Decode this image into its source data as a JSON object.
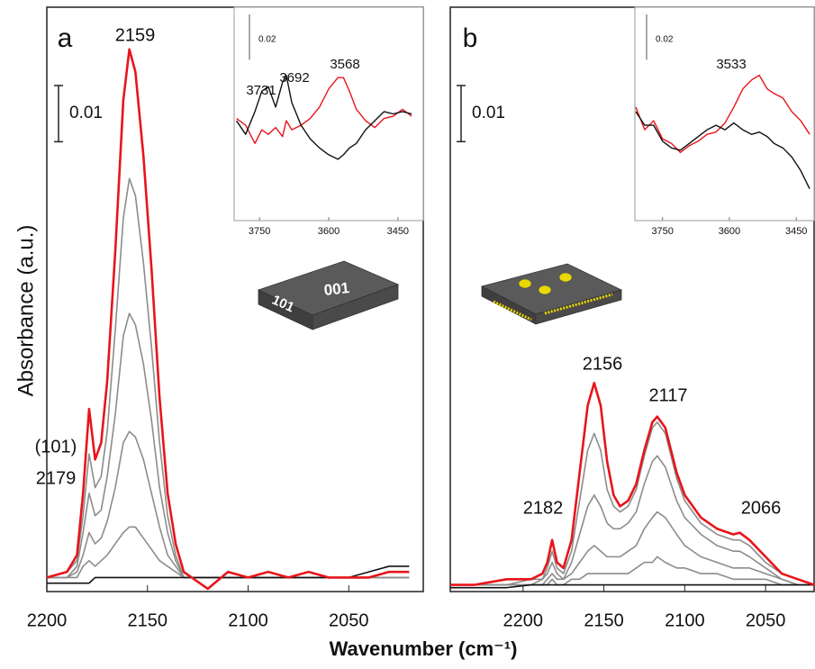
{
  "ylabel": "Absorbance (a.u.)",
  "xlabel": "Wavenumber (cm⁻¹)",
  "chart_data": [
    {
      "type": "line",
      "panel_label": "a",
      "xlim": [
        2200,
        2013
      ],
      "ylim": [
        -0.0025,
        0.1015
      ],
      "xticks": [
        2200,
        2150,
        2100,
        2050
      ],
      "scale_bar": 0.01,
      "peaks": [
        2179,
        2159
      ],
      "peak_note": "(101)",
      "illustration_labels": [
        "001",
        "101"
      ],
      "x": [
        2200,
        2190,
        2185,
        2182,
        2179,
        2176,
        2173,
        2170,
        2166,
        2162,
        2159,
        2156,
        2152,
        2148,
        2144,
        2140,
        2136,
        2132,
        2128,
        2120,
        2110,
        2100,
        2090,
        2080,
        2070,
        2060,
        2050,
        2040,
        2030,
        2020
      ],
      "series": [
        {
          "color": "#8c8c8c",
          "values": [
            0,
            0,
            0,
            0.002,
            0.003,
            0.002,
            0.003,
            0.004,
            0.006,
            0.008,
            0.009,
            0.009,
            0.007,
            0.005,
            0.003,
            0.002,
            0.001,
            0,
            0,
            0,
            0,
            0,
            0,
            0,
            0,
            0,
            0,
            0,
            0,
            0
          ]
        },
        {
          "color": "#8c8c8c",
          "values": [
            0,
            0,
            0.001,
            0.004,
            0.008,
            0.006,
            0.007,
            0.01,
            0.016,
            0.024,
            0.026,
            0.025,
            0.021,
            0.015,
            0.009,
            0.004,
            0.002,
            0,
            0,
            0,
            0,
            0,
            0,
            0,
            0,
            0,
            0,
            0,
            0,
            0
          ]
        },
        {
          "color": "#8c8c8c",
          "values": [
            0,
            0,
            0.002,
            0.008,
            0.015,
            0.011,
            0.012,
            0.018,
            0.029,
            0.043,
            0.047,
            0.045,
            0.038,
            0.028,
            0.016,
            0.008,
            0.003,
            0,
            0,
            0,
            0,
            0,
            0,
            0,
            0,
            0,
            0,
            0,
            0,
            0
          ]
        },
        {
          "color": "#8c8c8c",
          "values": [
            0,
            0.001,
            0.003,
            0.011,
            0.022,
            0.016,
            0.018,
            0.026,
            0.044,
            0.064,
            0.071,
            0.068,
            0.056,
            0.041,
            0.024,
            0.011,
            0.004,
            0,
            0,
            0,
            0,
            0,
            0,
            0,
            0,
            0,
            0,
            0,
            0,
            0
          ]
        },
        {
          "color": "#111111",
          "values": [
            -0.001,
            -0.001,
            -0.001,
            -0.001,
            -0.001,
            0,
            0,
            0,
            0,
            0,
            0,
            0,
            0,
            0,
            0,
            0,
            0,
            0,
            0,
            0,
            0,
            0,
            0,
            0,
            0,
            0,
            0,
            0.001,
            0.002,
            0.002
          ]
        },
        {
          "color": "#e8141b",
          "values": [
            0,
            0.001,
            0.004,
            0.015,
            0.03,
            0.021,
            0.024,
            0.035,
            0.058,
            0.085,
            0.094,
            0.09,
            0.075,
            0.055,
            0.032,
            0.015,
            0.006,
            0.001,
            0,
            -0.002,
            0.001,
            0,
            0.001,
            0,
            0.001,
            0,
            0,
            0,
            0.001,
            0.001
          ]
        }
      ],
      "inset": {
        "type": "line",
        "xlim": [
          3805,
          3395
        ],
        "ylim": [
          -0.042,
          0.052
        ],
        "xticks": [
          3750,
          3600,
          3450
        ],
        "scale_bar": 0.02,
        "peaks": [
          3731,
          3692,
          3568
        ],
        "x": [
          3800,
          3780,
          3760,
          3745,
          3731,
          3715,
          3700,
          3692,
          3680,
          3660,
          3640,
          3620,
          3600,
          3580,
          3568,
          3555,
          3540,
          3520,
          3500,
          3480,
          3460,
          3440,
          3420
        ],
        "series": [
          {
            "color": "#e8141b",
            "values": [
              0.003,
              0,
              -0.008,
              -0.002,
              -0.004,
              -0.001,
              -0.005,
              0.002,
              -0.002,
              0,
              0.003,
              0.008,
              0.016,
              0.021,
              0.021,
              0.015,
              0.007,
              0.002,
              -0.001,
              0.003,
              0.004,
              0.007,
              0.004
            ]
          },
          {
            "color": "#111111",
            "values": [
              0.002,
              -0.004,
              0.006,
              0.015,
              0.017,
              0.008,
              0.019,
              0.022,
              0.01,
              0,
              -0.006,
              -0.01,
              -0.013,
              -0.015,
              -0.013,
              -0.01,
              -0.008,
              -0.002,
              0.002,
              0.006,
              0.005,
              0.006,
              0.005
            ]
          }
        ]
      }
    },
    {
      "type": "line",
      "panel_label": "b",
      "xlim": [
        2245,
        2020
      ],
      "ylim": [
        -0.0012,
        0.103
      ],
      "xticks": [
        2200,
        2150,
        2100,
        2050
      ],
      "scale_bar": 0.01,
      "peaks": [
        2182,
        2156,
        2117,
        2066
      ],
      "x": [
        2245,
        2230,
        2210,
        2195,
        2188,
        2185,
        2182,
        2179,
        2175,
        2170,
        2165,
        2160,
        2156,
        2152,
        2148,
        2144,
        2140,
        2135,
        2130,
        2125,
        2120,
        2117,
        2112,
        2105,
        2100,
        2090,
        2080,
        2070,
        2066,
        2060,
        2050,
        2040,
        2030,
        2020
      ],
      "series": [
        {
          "color": "#8c8c8c",
          "values": [
            0,
            0,
            0,
            0,
            0,
            0,
            0.001,
            0,
            0,
            0.001,
            0.001,
            0.002,
            0.002,
            0.002,
            0.002,
            0.002,
            0.002,
            0.002,
            0.003,
            0.004,
            0.004,
            0.005,
            0.004,
            0.003,
            0.003,
            0.002,
            0.002,
            0.001,
            0.001,
            0.001,
            0.001,
            0,
            0,
            0
          ]
        },
        {
          "color": "#8c8c8c",
          "values": [
            0,
            0,
            0,
            0,
            0,
            0.001,
            0.002,
            0.001,
            0.001,
            0.002,
            0.004,
            0.006,
            0.007,
            0.006,
            0.005,
            0.005,
            0.005,
            0.006,
            0.007,
            0.01,
            0.012,
            0.013,
            0.012,
            0.009,
            0.007,
            0.005,
            0.004,
            0.003,
            0.003,
            0.003,
            0.002,
            0.001,
            0,
            0
          ]
        },
        {
          "color": "#8c8c8c",
          "values": [
            0,
            0,
            0,
            0,
            0.001,
            0.002,
            0.004,
            0.002,
            0.001,
            0.004,
            0.009,
            0.014,
            0.016,
            0.014,
            0.011,
            0.01,
            0.01,
            0.011,
            0.013,
            0.018,
            0.022,
            0.023,
            0.021,
            0.015,
            0.012,
            0.009,
            0.007,
            0.006,
            0.006,
            0.005,
            0.003,
            0.001,
            0,
            0
          ]
        },
        {
          "color": "#8c8c8c",
          "values": [
            0,
            0,
            0,
            0.001,
            0.001,
            0.003,
            0.006,
            0.003,
            0.002,
            0.006,
            0.015,
            0.024,
            0.027,
            0.024,
            0.017,
            0.014,
            0.013,
            0.014,
            0.017,
            0.023,
            0.028,
            0.029,
            0.027,
            0.019,
            0.015,
            0.011,
            0.009,
            0.008,
            0.008,
            0.007,
            0.004,
            0.002,
            0.001,
            0
          ]
        },
        {
          "color": "#111111",
          "values": [
            -0.0005,
            -0.0005,
            -0.0005,
            0,
            0,
            0,
            0,
            0,
            0,
            0,
            0,
            0,
            0,
            0,
            0,
            0,
            0,
            0,
            0,
            0,
            0,
            0,
            0,
            0,
            0,
            0,
            0,
            0,
            0,
            0,
            0,
            0,
            0,
            0
          ]
        },
        {
          "color": "#e8141b",
          "values": [
            0,
            0,
            0.001,
            0.001,
            0.002,
            0.004,
            0.008,
            0.004,
            0.003,
            0.008,
            0.02,
            0.032,
            0.036,
            0.032,
            0.022,
            0.016,
            0.014,
            0.015,
            0.018,
            0.024,
            0.029,
            0.03,
            0.028,
            0.02,
            0.016,
            0.012,
            0.01,
            0.009,
            0.0093,
            0.008,
            0.005,
            0.002,
            0.001,
            0
          ]
        }
      ],
      "inset": {
        "type": "line",
        "xlim": [
          3812,
          3410
        ],
        "ylim": [
          -0.038,
          0.056
        ],
        "xticks": [
          3750,
          3600,
          3450
        ],
        "scale_bar": 0.02,
        "peaks": [
          3533
        ],
        "x": [
          3810,
          3790,
          3770,
          3750,
          3730,
          3710,
          3690,
          3670,
          3650,
          3630,
          3610,
          3590,
          3570,
          3550,
          3533,
          3515,
          3500,
          3480,
          3460,
          3440,
          3420
        ],
        "series": [
          {
            "color": "#e8141b",
            "values": [
              0.012,
              0.002,
              0.006,
              -0.002,
              -0.004,
              -0.008,
              -0.005,
              -0.003,
              0,
              0.001,
              0.005,
              0.012,
              0.02,
              0.024,
              0.026,
              0.02,
              0.018,
              0.016,
              0.01,
              0.006,
              0
            ]
          },
          {
            "color": "#111111",
            "values": [
              0.01,
              0.004,
              0.004,
              -0.003,
              -0.006,
              -0.007,
              -0.004,
              -0.001,
              0.002,
              0.004,
              0.002,
              0.005,
              0.002,
              0,
              0.001,
              -0.001,
              -0.004,
              -0.006,
              -0.01,
              -0.016,
              -0.024
            ]
          }
        ]
      }
    }
  ]
}
